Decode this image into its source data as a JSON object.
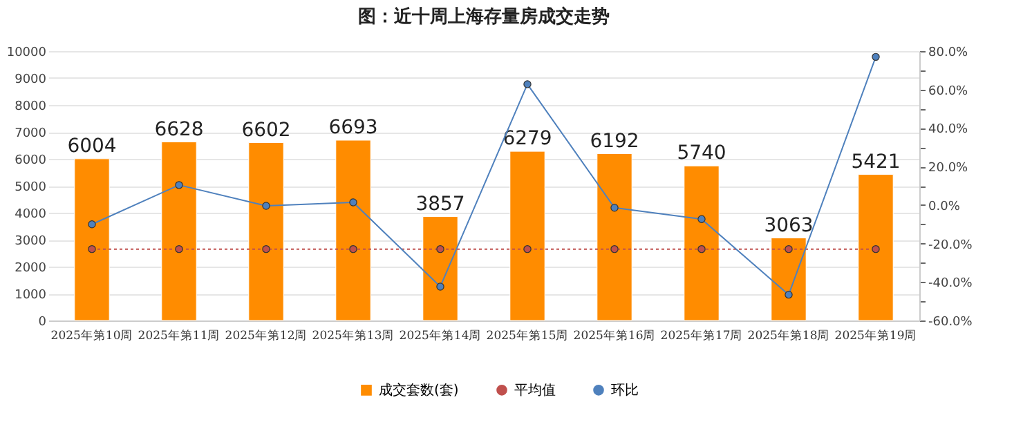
{
  "chart_data": {
    "type": "bar",
    "title": "图：近十周上海存量房成交走势",
    "categories": [
      "2025年第10周",
      "2025年第11周",
      "2025年第12周",
      "2025年第13周",
      "2025年第14周",
      "2025年第15周",
      "2025年第16周",
      "2025年第17周",
      "2025年第18周",
      "2025年第19周"
    ],
    "series": [
      {
        "name": "成交套数(套)",
        "color": "#ff8c00",
        "values": [
          6004,
          6628,
          6602,
          6693,
          3857,
          6279,
          6192,
          5740,
          3063,
          5421
        ],
        "value_labels": [
          "6004",
          "6628",
          "6602",
          "6693",
          "3857",
          "6279",
          "6192",
          "5740",
          "3063",
          "5421"
        ]
      },
      {
        "name": "平均值",
        "type": "line",
        "color": "#c0504d",
        "line_style": "dotted",
        "values": [
          2650,
          2650,
          2650,
          2650,
          2650,
          2650,
          2650,
          2650,
          2650,
          2650
        ]
      },
      {
        "name": "环比",
        "type": "line",
        "axis": "y2",
        "color": "#4f81bd",
        "values": [
          -10.0,
          10.4,
          -0.4,
          1.4,
          -42.4,
          62.8,
          -1.4,
          -7.3,
          -46.6,
          77.0
        ]
      }
    ],
    "ylim": [
      0,
      10000
    ],
    "yticks": [
      0,
      1000,
      2000,
      3000,
      4000,
      5000,
      6000,
      7000,
      8000,
      9000,
      10000
    ],
    "y2lim": [
      -60,
      80
    ],
    "y2ticks": [
      {
        "value": -60,
        "label": "-60.0%"
      },
      {
        "value": -50,
        "label": null
      },
      {
        "value": -40,
        "label": "-40.0%"
      },
      {
        "value": -30,
        "label": null
      },
      {
        "value": -20,
        "label": "-20.0%"
      },
      {
        "value": -10,
        "label": null
      },
      {
        "value": 0,
        "label": "0.0%"
      },
      {
        "value": 10,
        "label": null
      },
      {
        "value": 20,
        "label": "20.0%"
      },
      {
        "value": 30,
        "label": null
      },
      {
        "value": 40,
        "label": "40.0%"
      },
      {
        "value": 50,
        "label": null
      },
      {
        "value": 60,
        "label": "60.0%"
      },
      {
        "value": 70,
        "label": null
      },
      {
        "value": 80,
        "label": "80.0%"
      }
    ],
    "grid": "y",
    "legend": "bottom",
    "marker": "circle"
  }
}
